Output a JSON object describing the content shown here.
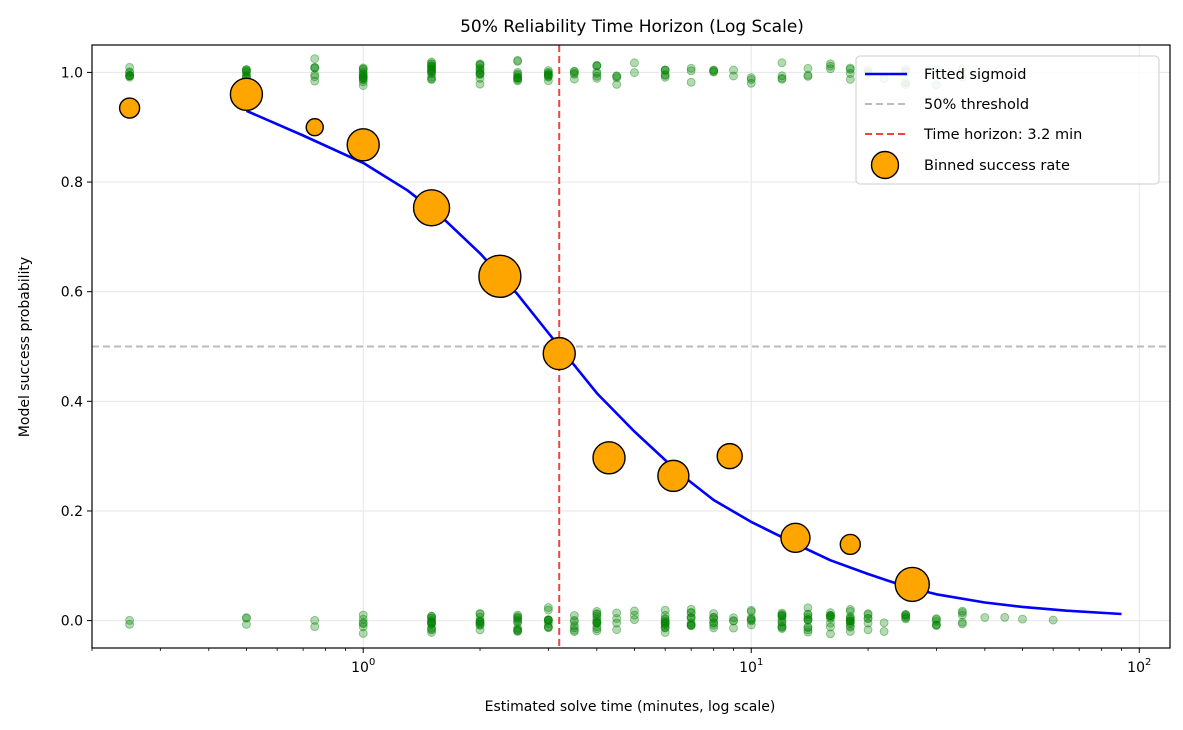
{
  "chart_data": {
    "type": "scatter",
    "title": "50% Reliability Time Horizon (Log Scale)",
    "xlabel": "Estimated solve time (minutes, log scale)",
    "ylabel": "Model success probability",
    "x_scale": "log",
    "xlim": [
      0.2,
      120
    ],
    "ylim": [
      -0.05,
      1.05
    ],
    "grid": true,
    "legend_position": "top-right",
    "x_ticks": [
      {
        "value": 1,
        "base": "10",
        "exp": "0"
      },
      {
        "value": 10,
        "base": "10",
        "exp": "1"
      },
      {
        "value": 100,
        "base": "10",
        "exp": "2"
      }
    ],
    "y_ticks": [
      {
        "value": 0.0,
        "label": "0.0"
      },
      {
        "value": 0.2,
        "label": "0.2"
      },
      {
        "value": 0.4,
        "label": "0.4"
      },
      {
        "value": 0.6,
        "label": "0.6"
      },
      {
        "value": 0.8,
        "label": "0.8"
      },
      {
        "value": 1.0,
        "label": "1.0"
      }
    ],
    "colors": {
      "sigmoid": "#0000ff",
      "threshold": "#bbbbbb",
      "horizon": "#ee4444",
      "binned_fill": "#ffa500",
      "binned_edge": "#000000",
      "raw_points": "#008000",
      "grid": "#e6e6e6"
    },
    "legend": [
      {
        "key": "sigmoid",
        "label": "Fitted sigmoid"
      },
      {
        "key": "threshold",
        "label": "50% threshold"
      },
      {
        "key": "horizon",
        "label": "Time horizon: 3.2 min"
      },
      {
        "key": "binned",
        "label": "Binned success rate"
      }
    ],
    "threshold_y": 0.5,
    "time_horizon_min": 3.2,
    "series": [
      {
        "name": "Fitted sigmoid",
        "kind": "line",
        "x": [
          0.5,
          0.7,
          1.0,
          1.3,
          1.6,
          2.0,
          2.5,
          3.2,
          4.0,
          5.0,
          6.5,
          8.0,
          10,
          13,
          16,
          20,
          25,
          30,
          40,
          50,
          65,
          90
        ],
        "y": [
          0.93,
          0.885,
          0.835,
          0.785,
          0.735,
          0.67,
          0.595,
          0.5,
          0.415,
          0.345,
          0.27,
          0.22,
          0.18,
          0.14,
          0.11,
          0.085,
          0.062,
          0.048,
          0.033,
          0.025,
          0.018,
          0.012
        ]
      },
      {
        "name": "Binned success rate",
        "kind": "bubble",
        "x": [
          0.25,
          0.5,
          0.75,
          1.0,
          1.5,
          2.25,
          3.2,
          4.3,
          6.3,
          8.8,
          13,
          18,
          26
        ],
        "y": [
          0.935,
          0.96,
          0.9,
          0.868,
          0.753,
          0.628,
          0.487,
          0.297,
          0.264,
          0.3,
          0.151,
          0.139,
          0.066
        ],
        "size": [
          10,
          16,
          8.5,
          16,
          18,
          21,
          16,
          16,
          15.5,
          12.5,
          14.5,
          10,
          17
        ]
      },
      {
        "name": "Raw task outcomes",
        "kind": "jitter-strip",
        "x_bins": [
          0.25,
          0.5,
          0.75,
          1.0,
          1.5,
          2.0,
          2.5,
          3.0,
          3.5,
          4.0,
          4.5,
          5.0,
          6.0,
          7.0,
          8.0,
          9.0,
          10,
          12,
          14,
          16,
          18,
          20,
          22,
          25,
          30,
          35,
          40,
          45,
          50,
          60
        ],
        "successes": [
          8,
          10,
          7,
          14,
          16,
          12,
          11,
          9,
          5,
          7,
          4,
          2,
          6,
          3,
          4,
          2,
          3,
          4,
          3,
          3,
          4,
          2,
          1,
          4,
          2,
          2,
          0,
          0,
          0,
          0
        ],
        "failures": [
          2,
          3,
          2,
          6,
          14,
          11,
          12,
          11,
          7,
          13,
          4,
          3,
          13,
          11,
          8,
          4,
          7,
          12,
          11,
          10,
          13,
          6,
          2,
          6,
          6,
          5,
          1,
          1,
          1,
          1
        ]
      }
    ]
  }
}
